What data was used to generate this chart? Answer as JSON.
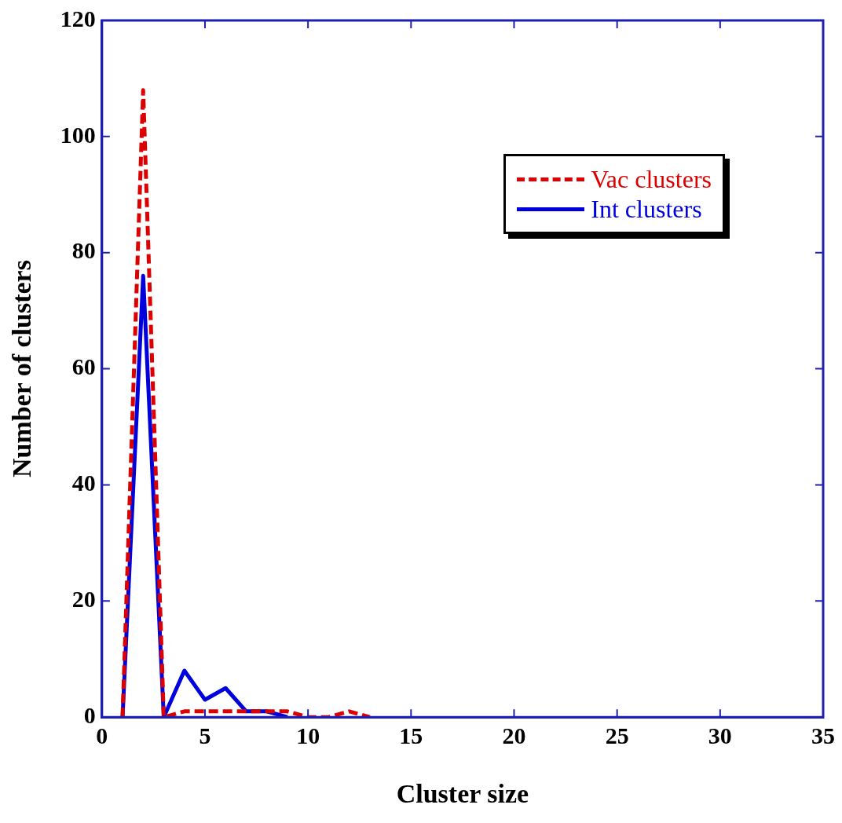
{
  "chart_data": {
    "type": "line",
    "xlabel": "Cluster size",
    "ylabel": "Number of clusters",
    "xlim": [
      0,
      35
    ],
    "xticks": [
      0,
      5,
      10,
      15,
      20,
      25,
      30,
      35
    ],
    "ylim": [
      0,
      120
    ],
    "yticks": [
      0,
      20,
      40,
      60,
      80,
      100,
      120
    ],
    "grid": false,
    "legend": "top right",
    "marker": "none",
    "series": [
      {
        "name": "Vac clusters",
        "color": "#dd0000",
        "line_style": "dashed",
        "x": [
          1,
          2,
          3,
          4,
          5,
          6,
          7,
          8,
          9,
          10,
          11,
          12,
          13
        ],
        "values": [
          0,
          108,
          0,
          1,
          1,
          1,
          1,
          1,
          1,
          0,
          0,
          1,
          0
        ]
      },
      {
        "name": "Int clusters",
        "color": "#0000dd",
        "line_style": "solid",
        "x": [
          1,
          2,
          3,
          4,
          5,
          6,
          7,
          8,
          9
        ],
        "values": [
          0,
          76,
          0,
          8,
          3,
          5,
          1,
          1,
          0
        ]
      }
    ]
  }
}
